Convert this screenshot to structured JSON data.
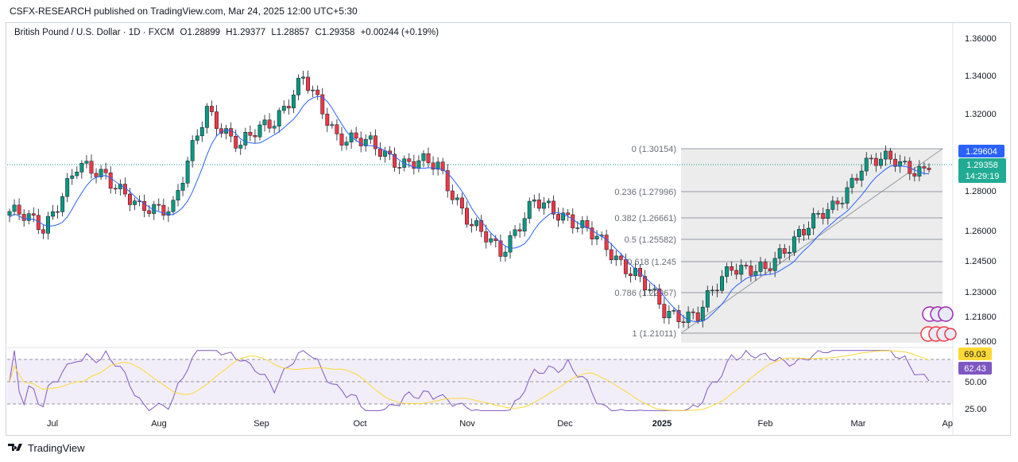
{
  "header": {
    "publisher": "CSFX-RESEARCH published on TradingView.com, Mar 24, 2025 12:00 UTC+5:30"
  },
  "legend": {
    "symbol": "British Pound / U.S. Dollar · 1D · FXCM",
    "open": "O1.28899",
    "high": "H1.29377",
    "low": "L1.28857",
    "close": "C1.29358",
    "change": "+0.00244 (+0.19%)"
  },
  "price_axis": [
    "1.36000",
    "1.34000",
    "1.32000",
    "1.28000",
    "1.26000",
    "1.24500",
    "1.23000",
    "1.21800",
    "1.20600"
  ],
  "price_tags": {
    "level": "1.29604",
    "last": "1.29358",
    "countdown": "14:29:19"
  },
  "rsi_axis": [
    "69.03",
    "62.43",
    "50.00",
    "25.00"
  ],
  "time_axis": [
    "Jul",
    "Aug",
    "Sep",
    "Oct",
    "Nov",
    "Dec",
    "2025",
    "Feb",
    "Mar",
    "Ap"
  ],
  "fib_labels": [
    "0 (1.30154)",
    "0.236 (1.27996)",
    "0.382 (1.26661)",
    "0.5 (1.25582)",
    "0.618 (1.245",
    "0.786 (1.22967)",
    "1 (1.21011)"
  ],
  "branding": {
    "name": "TradingView"
  },
  "colors": {
    "up": "#089981",
    "down": "#f23645",
    "ma": "#2962ff",
    "rsi": "#7e57c2",
    "rsi_ma": "#fdd835",
    "tag_blue": "#2962ff",
    "tag_green": "#22ab94"
  },
  "chart_data": {
    "type": "candlestick",
    "interval": "1D",
    "price_range": [
      1.2,
      1.365
    ],
    "close_series_anchors": {
      "dates": [
        "2024-06-20",
        "2024-07-01",
        "2024-07-15",
        "2024-07-24",
        "2024-08-05",
        "2024-08-12",
        "2024-08-26",
        "2024-09-10",
        "2024-09-20",
        "2024-09-26",
        "2024-10-03",
        "2024-10-10",
        "2024-10-25",
        "2024-11-07",
        "2024-11-15",
        "2024-11-22",
        "2024-12-06",
        "2024-12-18",
        "2024-12-30",
        "2025-01-08",
        "2025-01-13",
        "2025-01-17",
        "2025-01-28",
        "2025-02-10",
        "2025-02-20",
        "2025-03-04",
        "2025-03-12",
        "2025-03-18",
        "2025-03-21"
      ],
      "values": [
        1.272,
        1.264,
        1.294,
        1.292,
        1.272,
        1.276,
        1.324,
        1.306,
        1.32,
        1.34,
        1.312,
        1.306,
        1.297,
        1.296,
        1.264,
        1.252,
        1.276,
        1.27,
        1.255,
        1.24,
        1.22,
        1.218,
        1.245,
        1.24,
        1.262,
        1.273,
        1.296,
        1.299,
        1.291
      ]
    },
    "fibonacci": {
      "levels": [
        0,
        0.236,
        0.382,
        0.5,
        0.618,
        0.786,
        1
      ],
      "prices": [
        1.30154,
        1.27996,
        1.26661,
        1.25582,
        1.245,
        1.22967,
        1.21011
      ]
    },
    "ohlc_last": {
      "open": 1.28899,
      "high": 1.29377,
      "low": 1.28857,
      "close": 1.29358
    },
    "rsi": {
      "upper": 69.03,
      "last": 62.43,
      "lines": [
        70,
        50,
        30
      ]
    }
  }
}
